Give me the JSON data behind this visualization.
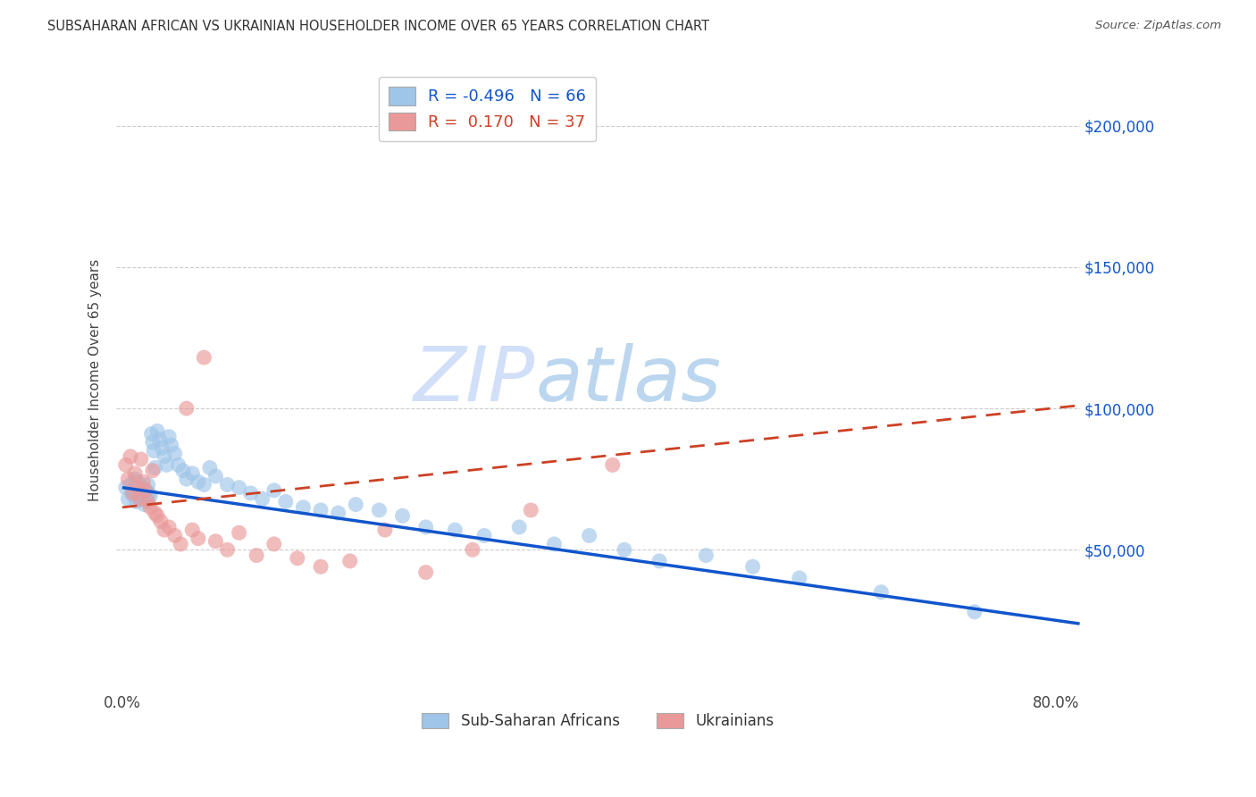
{
  "title": "SUBSAHARAN AFRICAN VS UKRAINIAN HOUSEHOLDER INCOME OVER 65 YEARS CORRELATION CHART",
  "source": "Source: ZipAtlas.com",
  "ylabel": "Householder Income Over 65 years",
  "xlim": [
    -0.005,
    0.82
  ],
  "ylim": [
    0,
    220000
  ],
  "yticks": [
    0,
    50000,
    100000,
    150000,
    200000
  ],
  "ytick_labels": [
    "",
    "$50,000",
    "$100,000",
    "$150,000",
    "$200,000"
  ],
  "xticks": [
    0.0,
    0.1,
    0.2,
    0.3,
    0.4,
    0.5,
    0.6,
    0.7,
    0.8
  ],
  "legend_label1": "Sub-Saharan Africans",
  "legend_label2": "Ukrainians",
  "r1": "-0.496",
  "n1": "66",
  "r2": "0.170",
  "n2": "37",
  "blue_color": "#9fc5e8",
  "pink_color": "#ea9999",
  "blue_line_color": "#1155cc",
  "pink_line_color": "#cc4125",
  "watermark_zip_color": "#c9daf8",
  "watermark_atlas_color": "#adc8e8",
  "grid_color": "#cccccc",
  "blue_scatter_x": [
    0.003,
    0.005,
    0.007,
    0.008,
    0.009,
    0.01,
    0.011,
    0.012,
    0.013,
    0.014,
    0.015,
    0.015,
    0.016,
    0.017,
    0.018,
    0.019,
    0.02,
    0.021,
    0.022,
    0.023,
    0.024,
    0.025,
    0.026,
    0.027,
    0.028,
    0.03,
    0.032,
    0.034,
    0.036,
    0.038,
    0.04,
    0.042,
    0.045,
    0.048,
    0.052,
    0.055,
    0.06,
    0.065,
    0.07,
    0.075,
    0.08,
    0.09,
    0.1,
    0.11,
    0.12,
    0.13,
    0.14,
    0.155,
    0.17,
    0.185,
    0.2,
    0.22,
    0.24,
    0.26,
    0.285,
    0.31,
    0.34,
    0.37,
    0.4,
    0.43,
    0.46,
    0.5,
    0.54,
    0.58,
    0.65,
    0.73
  ],
  "blue_scatter_y": [
    72000,
    68000,
    73000,
    70000,
    71000,
    69000,
    75000,
    67000,
    74000,
    71000,
    73000,
    69000,
    68000,
    72000,
    70000,
    66000,
    71000,
    68000,
    73000,
    70000,
    69000,
    91000,
    88000,
    85000,
    79000,
    92000,
    89000,
    86000,
    83000,
    80000,
    90000,
    87000,
    84000,
    80000,
    78000,
    75000,
    77000,
    74000,
    73000,
    79000,
    76000,
    73000,
    72000,
    70000,
    68000,
    71000,
    67000,
    65000,
    64000,
    63000,
    66000,
    64000,
    62000,
    58000,
    57000,
    55000,
    58000,
    52000,
    55000,
    50000,
    46000,
    48000,
    44000,
    40000,
    35000,
    28000
  ],
  "pink_scatter_x": [
    0.003,
    0.005,
    0.007,
    0.009,
    0.011,
    0.013,
    0.015,
    0.016,
    0.018,
    0.02,
    0.022,
    0.024,
    0.026,
    0.028,
    0.03,
    0.033,
    0.036,
    0.04,
    0.045,
    0.05,
    0.055,
    0.06,
    0.065,
    0.07,
    0.08,
    0.09,
    0.1,
    0.115,
    0.13,
    0.15,
    0.17,
    0.195,
    0.225,
    0.26,
    0.3,
    0.35,
    0.42
  ],
  "pink_scatter_y": [
    80000,
    75000,
    83000,
    70000,
    77000,
    72000,
    68000,
    82000,
    74000,
    71000,
    67000,
    65000,
    78000,
    63000,
    62000,
    60000,
    57000,
    58000,
    55000,
    52000,
    100000,
    57000,
    54000,
    118000,
    53000,
    50000,
    56000,
    48000,
    52000,
    47000,
    44000,
    46000,
    57000,
    42000,
    50000,
    64000,
    80000
  ]
}
